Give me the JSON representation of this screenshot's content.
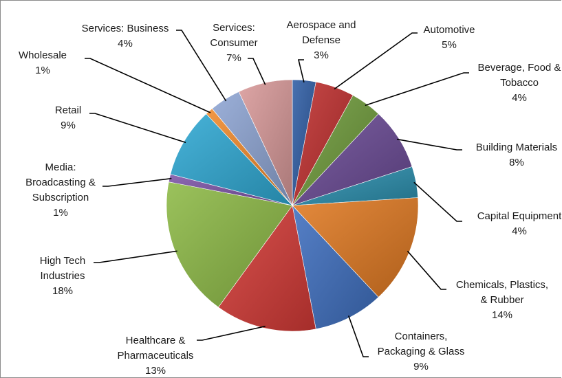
{
  "chart_data": {
    "type": "pie",
    "title": "",
    "slices": [
      {
        "label": [
          "Aerospace and",
          "Defense"
        ],
        "value": 3,
        "display": "3%",
        "color": "#2f5ea5"
      },
      {
        "label": [
          "Automotive"
        ],
        "value": 5,
        "display": "5%",
        "color": "#c0302f"
      },
      {
        "label": [
          "Beverage,  Food &",
          "Tobacco"
        ],
        "value": 4,
        "display": "4%",
        "color": "#6f9b3b"
      },
      {
        "label": [
          "Building Materials"
        ],
        "value": 8,
        "display": "8%",
        "color": "#6a4a95"
      },
      {
        "label": [
          "Capital Equipment"
        ],
        "value": 4,
        "display": "4%",
        "color": "#2c8fae"
      },
      {
        "label": [
          "Chemicals, Plastics,",
          "& Rubber"
        ],
        "value": 14,
        "display": "14%",
        "color": "#e07a23"
      },
      {
        "label": [
          "Containers,",
          "Packaging & Glass"
        ],
        "value": 9,
        "display": "9%",
        "color": "#3f6fbf"
      },
      {
        "label": [
          "Healthcare &",
          "Pharmaceuticals"
        ],
        "value": 13,
        "display": "13%",
        "color": "#d33a36"
      },
      {
        "label": [
          "High Tech",
          "Industries"
        ],
        "value": 18,
        "display": "18%",
        "color": "#8dba46"
      },
      {
        "label": [
          "Media:",
          "Broadcasting &",
          "Subscription"
        ],
        "value": 1,
        "display": "1%",
        "color": "#7d55a8"
      },
      {
        "label": [
          "Retail"
        ],
        "value": 9,
        "display": "9%",
        "color": "#2fa9d4"
      },
      {
        "label": [
          "Wholesale"
        ],
        "value": 1,
        "display": "1%",
        "color": "#f08a2c"
      },
      {
        "label": [
          "Services: Business"
        ],
        "value": 4,
        "display": "4%",
        "color": "#8ea5d4"
      },
      {
        "label": [
          "Services:",
          "Consumer"
        ],
        "value": 7,
        "display": "7%",
        "color": "#d99a9a"
      }
    ],
    "legend": "none",
    "data_labels": "outside with leader lines"
  }
}
